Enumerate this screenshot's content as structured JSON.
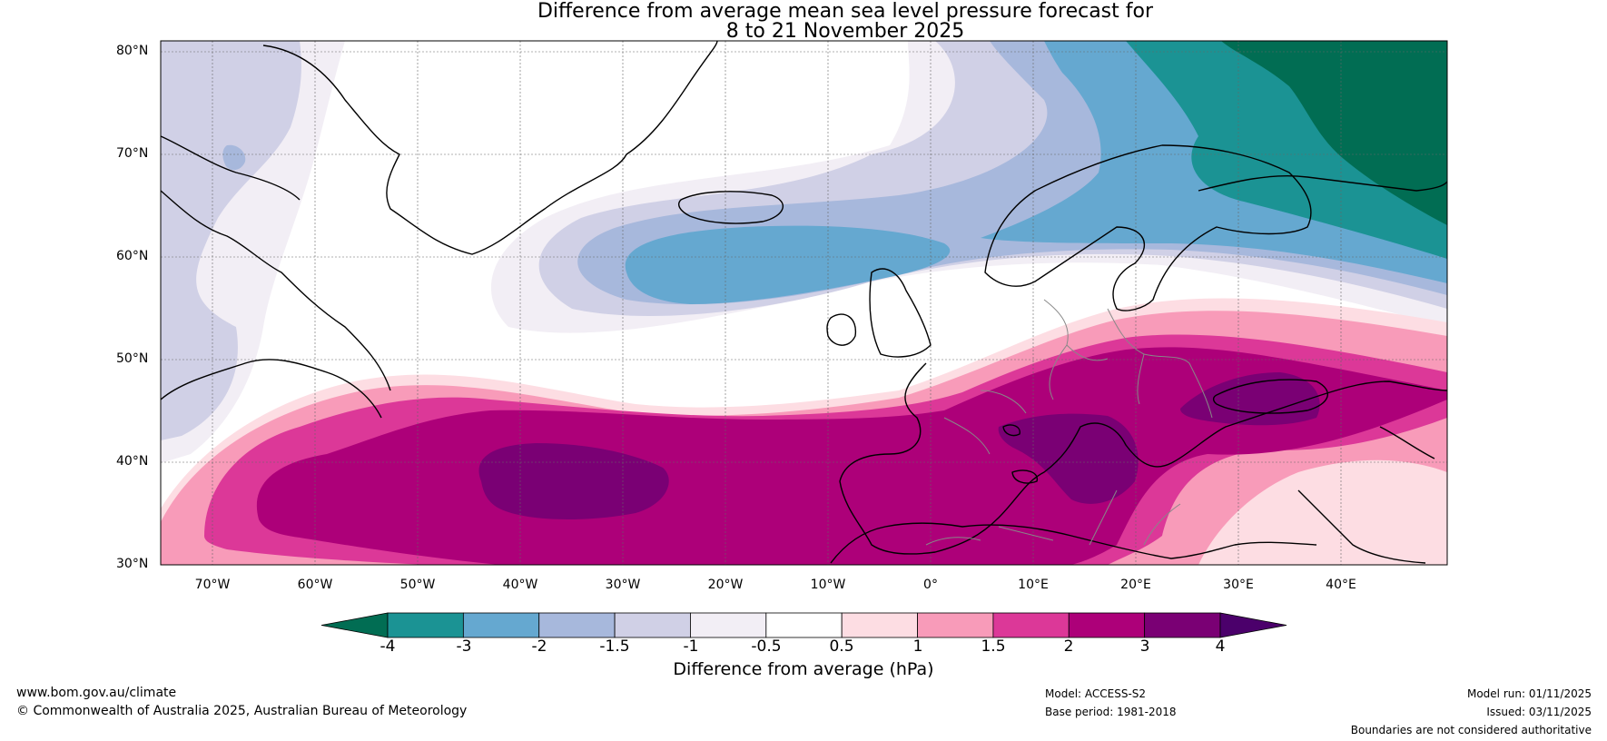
{
  "title": {
    "line1": "Difference from average mean sea level pressure forecast for",
    "line2": "8 to 21 November 2025"
  },
  "latitude_labels": [
    "80°N",
    "70°N",
    "60°N",
    "50°N",
    "40°N",
    "30°N"
  ],
  "longitude_labels": [
    "70°W",
    "60°W",
    "50°W",
    "40°W",
    "30°W",
    "20°W",
    "10°W",
    "0°",
    "10°E",
    "20°E",
    "30°E",
    "40°E"
  ],
  "colorbar": {
    "ticks": [
      "-4",
      "-3",
      "-2",
      "-1.5",
      "-1",
      "-0.5",
      "0.5",
      "1",
      "1.5",
      "2",
      "3",
      "4"
    ],
    "colors": [
      "#016d53",
      "#1b9394",
      "#65a8d0",
      "#a7b8dc",
      "#d0d0e6",
      "#f2eef5",
      "#ffffff",
      "#fddde3",
      "#f89bb9",
      "#dc3898",
      "#ad0079",
      "#7a0074",
      "#4b006b"
    ],
    "label": "Difference from average (hPa)"
  },
  "footer": {
    "website": "www.bom.gov.au/climate",
    "copyright": "© Commonwealth of Australia 2025, Australian Bureau of Meteorology",
    "model": "Model: ACCESS-S2",
    "base_period": "Base period: 1981-2018",
    "model_run": "Model run: 01/11/2025",
    "issued": "Issued: 03/11/2025",
    "disclaimer": "Boundaries are not considered authoritative"
  }
}
